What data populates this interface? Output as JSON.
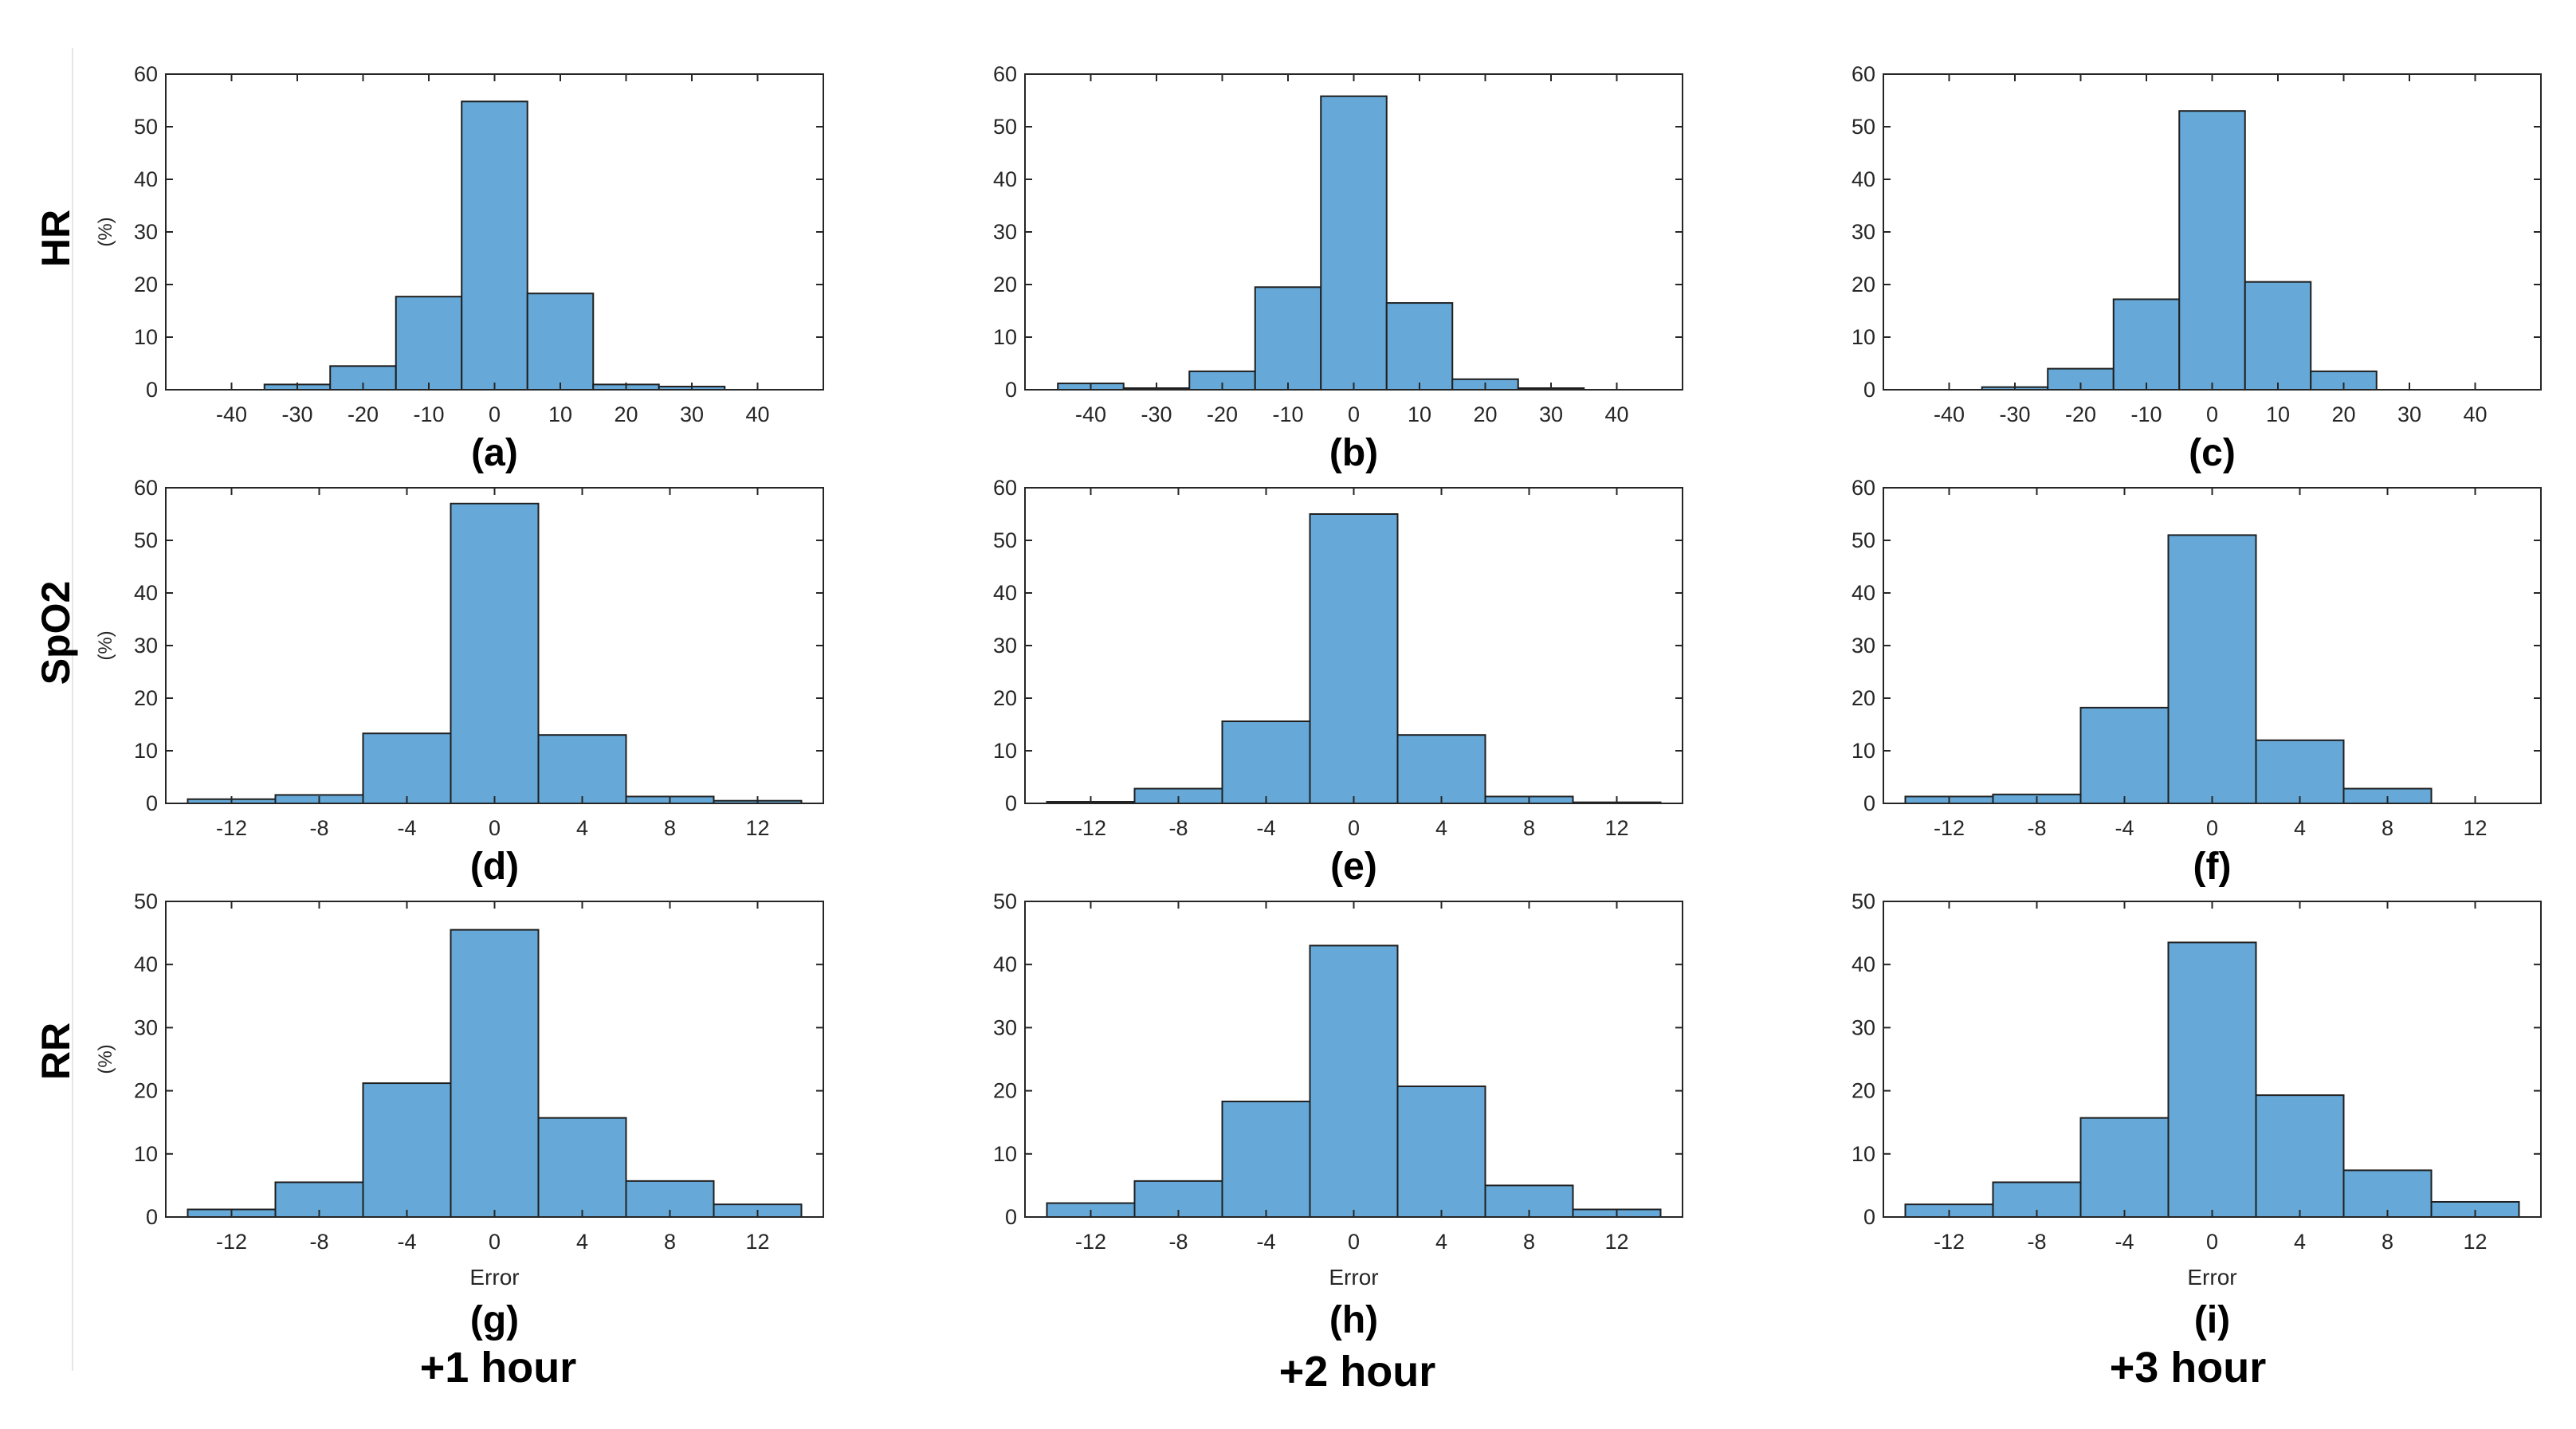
{
  "row_labels": [
    "HR",
    "SpO2",
    "RR"
  ],
  "column_labels": [
    "+1 hour",
    "+2 hour",
    "+3 hour"
  ],
  "colors": {
    "bar_fill": "#66a9d8",
    "bar_edge": "#1f1f1f",
    "axis": "#262626",
    "text": "#262626"
  },
  "chart_data": [
    {
      "type": "bar",
      "panel_label": "(a)",
      "title": "",
      "xlabel": "",
      "ylabel": "(%)",
      "xlim": [
        -50,
        50
      ],
      "xticks": [
        "-40",
        "-30",
        "-20",
        "-10",
        "0",
        "10",
        "20",
        "30",
        "40"
      ],
      "xtick_values": [
        -40,
        -30,
        -20,
        -10,
        0,
        10,
        20,
        30,
        40
      ],
      "ylim": [
        0,
        60
      ],
      "yticks": [
        0,
        10,
        20,
        30,
        40,
        50,
        60
      ],
      "bin_edges": [
        -45,
        -35,
        -25,
        -15,
        -5,
        5,
        15,
        25,
        35,
        45
      ],
      "values": [
        0,
        1.0,
        4.5,
        17.7,
        54.8,
        18.3,
        1.0,
        0.6,
        0
      ]
    },
    {
      "type": "bar",
      "panel_label": "(b)",
      "title": "",
      "xlabel": "",
      "ylabel": "",
      "xlim": [
        -50,
        50
      ],
      "xticks": [
        "-40",
        "-30",
        "-20",
        "-10",
        "0",
        "10",
        "20",
        "30",
        "40"
      ],
      "xtick_values": [
        -40,
        -30,
        -20,
        -10,
        0,
        10,
        20,
        30,
        40
      ],
      "ylim": [
        0,
        60
      ],
      "yticks": [
        0,
        10,
        20,
        30,
        40,
        50,
        60
      ],
      "bin_edges": [
        -45,
        -35,
        -25,
        -15,
        -5,
        5,
        15,
        25,
        35,
        45
      ],
      "values": [
        1.2,
        0.3,
        3.5,
        19.5,
        55.8,
        16.5,
        2.0,
        0.3,
        0
      ]
    },
    {
      "type": "bar",
      "panel_label": "(c)",
      "title": "",
      "xlabel": "",
      "ylabel": "",
      "xlim": [
        -50,
        50
      ],
      "xticks": [
        "-40",
        "-30",
        "-20",
        "-10",
        "0",
        "10",
        "20",
        "30",
        "40"
      ],
      "xtick_values": [
        -40,
        -30,
        -20,
        -10,
        0,
        10,
        20,
        30,
        40
      ],
      "ylim": [
        0,
        60
      ],
      "yticks": [
        0,
        10,
        20,
        30,
        40,
        50,
        60
      ],
      "bin_edges": [
        -45,
        -35,
        -25,
        -15,
        -5,
        5,
        15,
        25,
        35,
        45
      ],
      "values": [
        0,
        0.5,
        4.0,
        17.2,
        53.0,
        20.5,
        3.5,
        0,
        0
      ]
    },
    {
      "type": "bar",
      "panel_label": "(d)",
      "title": "",
      "xlabel": "",
      "ylabel": "(%)",
      "xlim": [
        -15,
        15
      ],
      "xticks": [
        "-12",
        "-8",
        "-4",
        "0",
        "4",
        "8",
        "12"
      ],
      "xtick_values": [
        -12,
        -8,
        -4,
        0,
        4,
        8,
        12
      ],
      "ylim": [
        0,
        60
      ],
      "yticks": [
        0,
        10,
        20,
        30,
        40,
        50,
        60
      ],
      "bin_edges": [
        -14,
        -10,
        -6,
        -2,
        2,
        6,
        10,
        14
      ],
      "values": [
        0.8,
        1.6,
        13.3,
        57.0,
        13.0,
        1.3,
        0.5
      ]
    },
    {
      "type": "bar",
      "panel_label": "(e)",
      "title": "",
      "xlabel": "",
      "ylabel": "",
      "xlim": [
        -15,
        15
      ],
      "xticks": [
        "-12",
        "-8",
        "-4",
        "0",
        "4",
        "8",
        "12"
      ],
      "xtick_values": [
        -12,
        -8,
        -4,
        0,
        4,
        8,
        12
      ],
      "ylim": [
        0,
        60
      ],
      "yticks": [
        0,
        10,
        20,
        30,
        40,
        50,
        60
      ],
      "bin_edges": [
        -14,
        -10,
        -6,
        -2,
        2,
        6,
        10,
        14
      ],
      "values": [
        0.3,
        2.8,
        15.6,
        55.0,
        13.0,
        1.3,
        0.2
      ]
    },
    {
      "type": "bar",
      "panel_label": "(f)",
      "title": "",
      "xlabel": "",
      "ylabel": "",
      "xlim": [
        -15,
        15
      ],
      "xticks": [
        "-12",
        "-8",
        "-4",
        "0",
        "4",
        "8",
        "12"
      ],
      "xtick_values": [
        -12,
        -8,
        -4,
        0,
        4,
        8,
        12
      ],
      "ylim": [
        0,
        60
      ],
      "yticks": [
        0,
        10,
        20,
        30,
        40,
        50,
        60
      ],
      "bin_edges": [
        -14,
        -10,
        -6,
        -2,
        2,
        6,
        10,
        14
      ],
      "values": [
        1.3,
        1.7,
        18.2,
        51.0,
        12.0,
        2.8,
        0
      ]
    },
    {
      "type": "bar",
      "panel_label": "(g)",
      "title": "",
      "xlabel": "Error",
      "ylabel": "(%)",
      "xlim": [
        -15,
        15
      ],
      "xticks": [
        "-12",
        "-8",
        "-4",
        "0",
        "4",
        "8",
        "12"
      ],
      "xtick_values": [
        -12,
        -8,
        -4,
        0,
        4,
        8,
        12
      ],
      "ylim": [
        0,
        50
      ],
      "yticks": [
        0,
        10,
        20,
        30,
        40,
        50
      ],
      "bin_edges": [
        -14,
        -10,
        -6,
        -2,
        2,
        6,
        10,
        14
      ],
      "values": [
        1.2,
        5.5,
        21.2,
        45.5,
        15.7,
        5.7,
        2.0
      ]
    },
    {
      "type": "bar",
      "panel_label": "(h)",
      "title": "",
      "xlabel": "Error",
      "ylabel": "",
      "xlim": [
        -15,
        15
      ],
      "xticks": [
        "-12",
        "-8",
        "-4",
        "0",
        "4",
        "8",
        "12"
      ],
      "xtick_values": [
        -12,
        -8,
        -4,
        0,
        4,
        8,
        12
      ],
      "ylim": [
        0,
        50
      ],
      "yticks": [
        0,
        10,
        20,
        30,
        40,
        50
      ],
      "bin_edges": [
        -14,
        -10,
        -6,
        -2,
        2,
        6,
        10,
        14
      ],
      "values": [
        2.2,
        5.7,
        18.3,
        43.0,
        20.7,
        5.0,
        1.2
      ]
    },
    {
      "type": "bar",
      "panel_label": "(i)",
      "title": "",
      "xlabel": "Error",
      "ylabel": "",
      "xlim": [
        -15,
        15
      ],
      "xticks": [
        "-12",
        "-8",
        "-4",
        "0",
        "4",
        "8",
        "12"
      ],
      "xtick_values": [
        -12,
        -8,
        -4,
        0,
        4,
        8,
        12
      ],
      "ylim": [
        0,
        50
      ],
      "yticks": [
        0,
        10,
        20,
        30,
        40,
        50
      ],
      "bin_edges": [
        -14,
        -10,
        -6,
        -2,
        2,
        6,
        10,
        14
      ],
      "values": [
        2.0,
        5.5,
        15.7,
        43.5,
        19.3,
        7.4,
        2.4
      ]
    }
  ]
}
